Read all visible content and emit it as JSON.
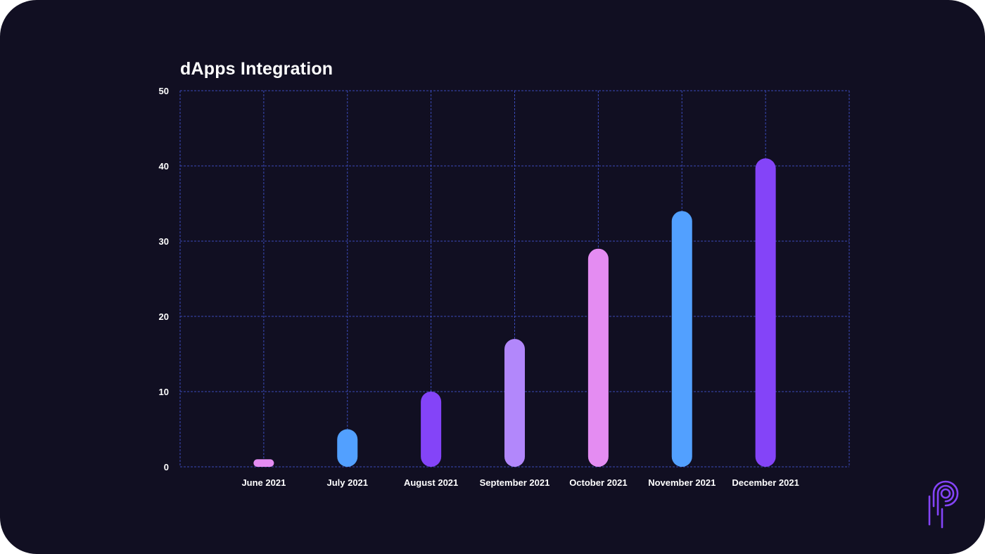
{
  "chart_data": {
    "type": "bar",
    "title": "dApps Integration",
    "categories": [
      "June 2021",
      "July 2021",
      "August 2021",
      "September 2021",
      "October 2021",
      "November 2021",
      "December 2021"
    ],
    "values": [
      1,
      5,
      10,
      17,
      29,
      34,
      41
    ],
    "ylim": [
      0,
      50
    ],
    "yticks": [
      0,
      10,
      20,
      30,
      40,
      50
    ],
    "xlabel": "",
    "ylabel": "",
    "grid": true,
    "bar_colors": [
      "#e48cf2",
      "#52a0ff",
      "#8444f8",
      "#b287fb",
      "#e48cf2",
      "#52a0ff",
      "#8444f8"
    ]
  },
  "colors": {
    "background": "#110f22",
    "grid": "#3a4ab8",
    "text": "#ffffff",
    "logo": "#8444f8"
  },
  "logo_icon": "brand-p-logo-icon"
}
